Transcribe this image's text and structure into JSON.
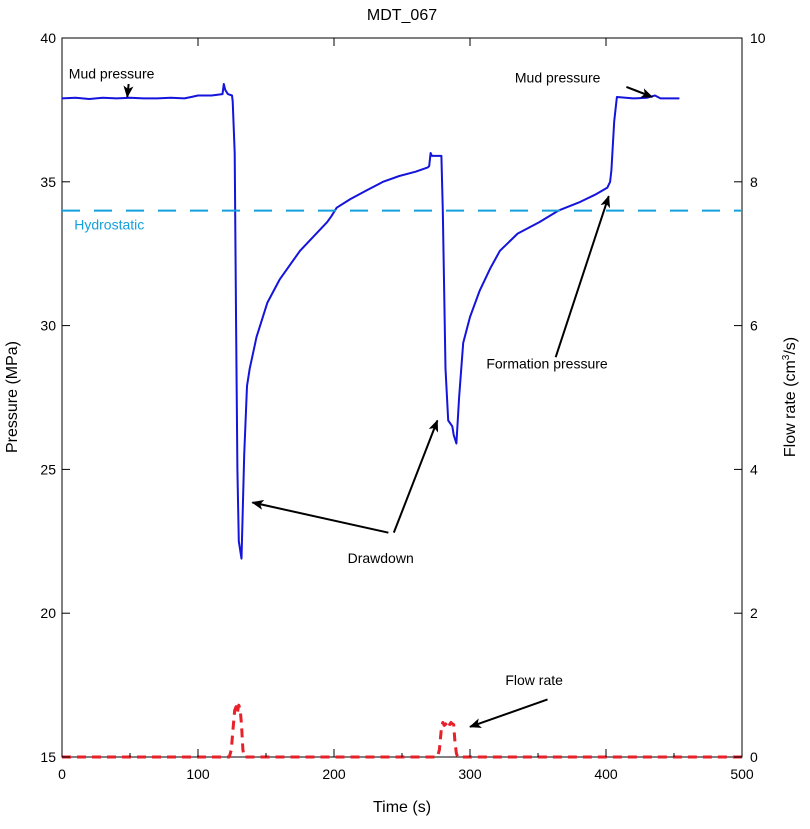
{
  "chart_data": {
    "type": "line",
    "title": "MDT_067",
    "xlabel": "Time (s)",
    "ylabel": "Pressure (MPa)",
    "y2label_pre": "Flow rate (cm",
    "y2label_sup": "3",
    "y2label_post": "/s)",
    "xlim": [
      0,
      500
    ],
    "ylim": [
      15,
      40
    ],
    "y2lim": [
      0,
      10
    ],
    "xticks": [
      "0",
      "100",
      "200",
      "300",
      "400",
      "500"
    ],
    "yticks": [
      "15",
      "20",
      "25",
      "30",
      "35",
      "40"
    ],
    "y2ticks": [
      "0",
      "2",
      "4",
      "6",
      "8",
      "10"
    ],
    "grid": false,
    "series": [
      {
        "name": "Pressure",
        "axis": "left",
        "color": "#1414dc",
        "x": [
          0,
          10,
          20,
          30,
          40,
          50,
          60,
          70,
          80,
          90,
          95,
          100,
          110,
          118,
          119,
          120,
          122,
          125,
          125.5,
          127,
          128,
          129,
          130,
          132,
          134,
          136,
          138,
          143,
          151,
          160,
          175,
          185,
          195,
          198,
          202,
          212,
          224,
          236,
          248,
          260,
          269,
          270,
          271,
          272,
          279,
          280,
          282,
          284,
          287,
          288,
          290,
          292,
          295,
          300,
          307,
          315,
          322,
          335,
          351,
          365,
          381,
          392,
          401,
          403,
          404,
          406,
          408,
          420,
          430,
          436,
          440,
          454
        ],
        "y": [
          37.9,
          37.92,
          37.88,
          37.92,
          37.9,
          37.92,
          37.9,
          37.9,
          37.92,
          37.9,
          37.95,
          38.0,
          38.0,
          38.05,
          38.4,
          38.2,
          38.05,
          38.0,
          37.8,
          36.0,
          30.0,
          25.0,
          22.5,
          21.9,
          25.5,
          27.9,
          28.5,
          29.6,
          30.8,
          31.6,
          32.6,
          33.1,
          33.6,
          33.8,
          34.1,
          34.4,
          34.7,
          35.0,
          35.2,
          35.35,
          35.5,
          35.55,
          36.0,
          35.9,
          35.9,
          34.0,
          28.5,
          26.7,
          26.5,
          26.2,
          25.9,
          27.5,
          29.4,
          30.3,
          31.2,
          32.0,
          32.6,
          33.2,
          33.6,
          34.0,
          34.3,
          34.55,
          34.8,
          35.0,
          35.4,
          37.1,
          37.95,
          37.9,
          37.92,
          38.0,
          37.9,
          37.9
        ]
      },
      {
        "name": "Flow rate",
        "axis": "right",
        "color": "#e8202a",
        "x": [
          0,
          123,
          124.5,
          126,
          127,
          128,
          129,
          130,
          131,
          132,
          133,
          134,
          276,
          277.5,
          279,
          280,
          281,
          282,
          283,
          284,
          285,
          286,
          287,
          288,
          289,
          290,
          291,
          500
        ],
        "y": [
          0,
          0,
          0.1,
          0.45,
          0.65,
          0.7,
          0.62,
          0.72,
          0.66,
          0.45,
          0.1,
          0,
          0,
          0.1,
          0.4,
          0.48,
          0.44,
          0.46,
          0.44,
          0.4,
          0.45,
          0.48,
          0.46,
          0.45,
          0.2,
          0.05,
          0,
          0
        ]
      },
      {
        "name": "Hydrostatic",
        "axis": "left",
        "color": "#13a0dc",
        "style": "dashed",
        "x": [
          0,
          500
        ],
        "y": [
          34.0,
          34.0
        ]
      }
    ],
    "annotations": [
      {
        "text": "Mud pressure",
        "tx": 5,
        "ty": 38.6,
        "arrows": [
          [
            49,
            38.4,
            48,
            37.95
          ]
        ]
      },
      {
        "text": "Mud pressure",
        "tx": 333,
        "ty": 38.45,
        "arrows": [
          [
            415,
            38.3,
            434,
            37.95
          ]
        ]
      },
      {
        "text": "Hydrostatic",
        "tx": 9,
        "ty": 33.35,
        "color": "#13a0dc",
        "arrows": []
      },
      {
        "text": "Drawdown",
        "tx": 210,
        "ty": 21.75,
        "arrows": [
          [
            240,
            22.8,
            140,
            23.85
          ],
          [
            244,
            22.8,
            276,
            26.7
          ]
        ]
      },
      {
        "text": "Formation pressure",
        "tx": 312,
        "ty": 28.5,
        "arrows": [
          [
            363,
            28.9,
            402,
            34.5
          ]
        ]
      },
      {
        "text": "Flow rate",
        "tx": 326,
        "ty": 17.5,
        "arrows": [
          [
            357,
            17.0,
            300,
            16.05
          ]
        ]
      }
    ]
  }
}
